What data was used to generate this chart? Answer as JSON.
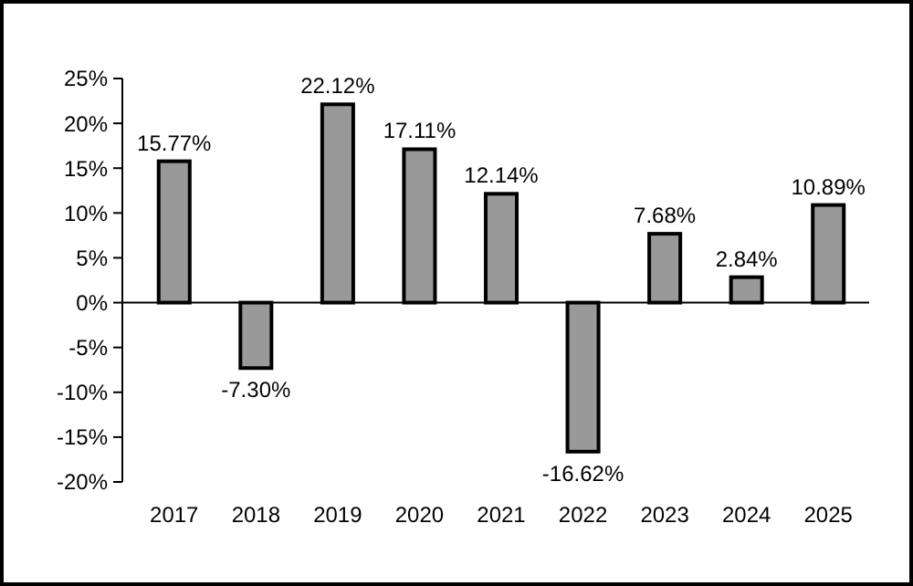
{
  "chart_data": {
    "type": "bar",
    "categories": [
      "2017",
      "2018",
      "2019",
      "2020",
      "2021",
      "2022",
      "2023",
      "2024",
      "2025"
    ],
    "values": [
      15.77,
      -7.3,
      22.12,
      17.11,
      12.14,
      -16.62,
      7.68,
      2.84,
      10.89
    ],
    "value_labels": [
      "15.77%",
      "-7.30%",
      "22.12%",
      "17.11%",
      "12.14%",
      "-16.62%",
      "7.68%",
      "2.84%",
      "10.89%"
    ],
    "color": "#999999",
    "ylim": [
      -20,
      25
    ],
    "yticks": [
      {
        "value": -20,
        "label": "-20%"
      },
      {
        "value": -15,
        "label": "-15%"
      },
      {
        "value": -10,
        "label": "-10%"
      },
      {
        "value": -5,
        "label": "-5%"
      },
      {
        "value": 0,
        "label": "0%"
      },
      {
        "value": 5,
        "label": "5%"
      },
      {
        "value": 10,
        "label": "10%"
      },
      {
        "value": 15,
        "label": "15%"
      },
      {
        "value": 20,
        "label": "20%"
      },
      {
        "value": 25,
        "label": "25%"
      }
    ],
    "data_labels": true
  }
}
